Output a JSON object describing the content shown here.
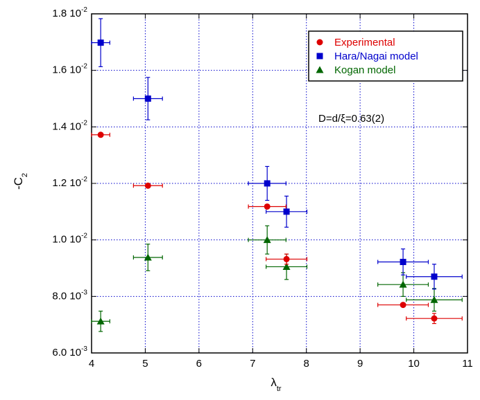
{
  "chart_data": {
    "type": "scatter",
    "title": "",
    "xlabel": {
      "main": "λ",
      "sub": "tr"
    },
    "ylabel": {
      "main": "-C",
      "sub": "2"
    },
    "xlim": [
      4,
      11
    ],
    "ylim": [
      0.006,
      0.018
    ],
    "grid": true,
    "xticks": [
      {
        "value": 4,
        "label": "4"
      },
      {
        "value": 5,
        "label": "5"
      },
      {
        "value": 6,
        "label": "6"
      },
      {
        "value": 7,
        "label": "7"
      },
      {
        "value": 8,
        "label": "8"
      },
      {
        "value": 9,
        "label": "9"
      },
      {
        "value": 10,
        "label": "10"
      },
      {
        "value": 11,
        "label": "11"
      }
    ],
    "yticks": [
      {
        "value": 0.006,
        "mant": "6.0 10",
        "exp": "-3"
      },
      {
        "value": 0.008,
        "mant": "8.0 10",
        "exp": "-3"
      },
      {
        "value": 0.01,
        "mant": "1.0 10",
        "exp": "-2"
      },
      {
        "value": 0.012,
        "mant": "1.2 10",
        "exp": "-2"
      },
      {
        "value": 0.014,
        "mant": "1.4 10",
        "exp": "-2"
      },
      {
        "value": 0.016,
        "mant": "1.6 10",
        "exp": "-2"
      },
      {
        "value": 0.018,
        "mant": "1.8 10",
        "exp": "-2"
      }
    ],
    "legend_position": "top-right",
    "annotation": "D=d/ξ=0.63(2)",
    "series": [
      {
        "name": "Experimental",
        "marker": "circle",
        "color": "#dd0000",
        "points": [
          {
            "x": 4.17,
            "y": 0.01372,
            "xerr": 0.17,
            "yerr": 0
          },
          {
            "x": 5.05,
            "y": 0.01192,
            "xerr": 0.27,
            "yerr": 0
          },
          {
            "x": 7.27,
            "y": 0.01118,
            "xerr": 0.35,
            "yerr": 0
          },
          {
            "x": 7.63,
            "y": 0.00932,
            "xerr": 0.38,
            "yerr": 0.00018
          },
          {
            "x": 9.8,
            "y": 0.0077,
            "xerr": 0.47,
            "yerr": 0
          },
          {
            "x": 10.38,
            "y": 0.00722,
            "xerr": 0.52,
            "yerr": 0.00018
          }
        ]
      },
      {
        "name": "Hara/Nagai model",
        "marker": "square",
        "color": "#0000cc",
        "points": [
          {
            "x": 4.17,
            "y": 0.01698,
            "xerr": 0.17,
            "yerr": 0.00085
          },
          {
            "x": 5.05,
            "y": 0.015,
            "xerr": 0.27,
            "yerr": 0.00075
          },
          {
            "x": 7.27,
            "y": 0.012,
            "xerr": 0.35,
            "yerr": 0.0006
          },
          {
            "x": 7.63,
            "y": 0.011,
            "xerr": 0.38,
            "yerr": 0.00055
          },
          {
            "x": 9.8,
            "y": 0.00922,
            "xerr": 0.47,
            "yerr": 0.00046
          },
          {
            "x": 10.38,
            "y": 0.0087,
            "xerr": 0.52,
            "yerr": 0.00044
          }
        ]
      },
      {
        "name": "Kogan model",
        "marker": "triangle",
        "color": "#006600",
        "points": [
          {
            "x": 4.17,
            "y": 0.00712,
            "xerr": 0.17,
            "yerr": 0.00036
          },
          {
            "x": 5.05,
            "y": 0.00938,
            "xerr": 0.27,
            "yerr": 0.00047
          },
          {
            "x": 7.27,
            "y": 0.01,
            "xerr": 0.35,
            "yerr": 0.0005
          },
          {
            "x": 7.63,
            "y": 0.00905,
            "xerr": 0.38,
            "yerr": 0.00045
          },
          {
            "x": 9.8,
            "y": 0.00842,
            "xerr": 0.47,
            "yerr": 0.00042
          },
          {
            "x": 10.38,
            "y": 0.00788,
            "xerr": 0.52,
            "yerr": 0.0004
          }
        ]
      }
    ]
  }
}
